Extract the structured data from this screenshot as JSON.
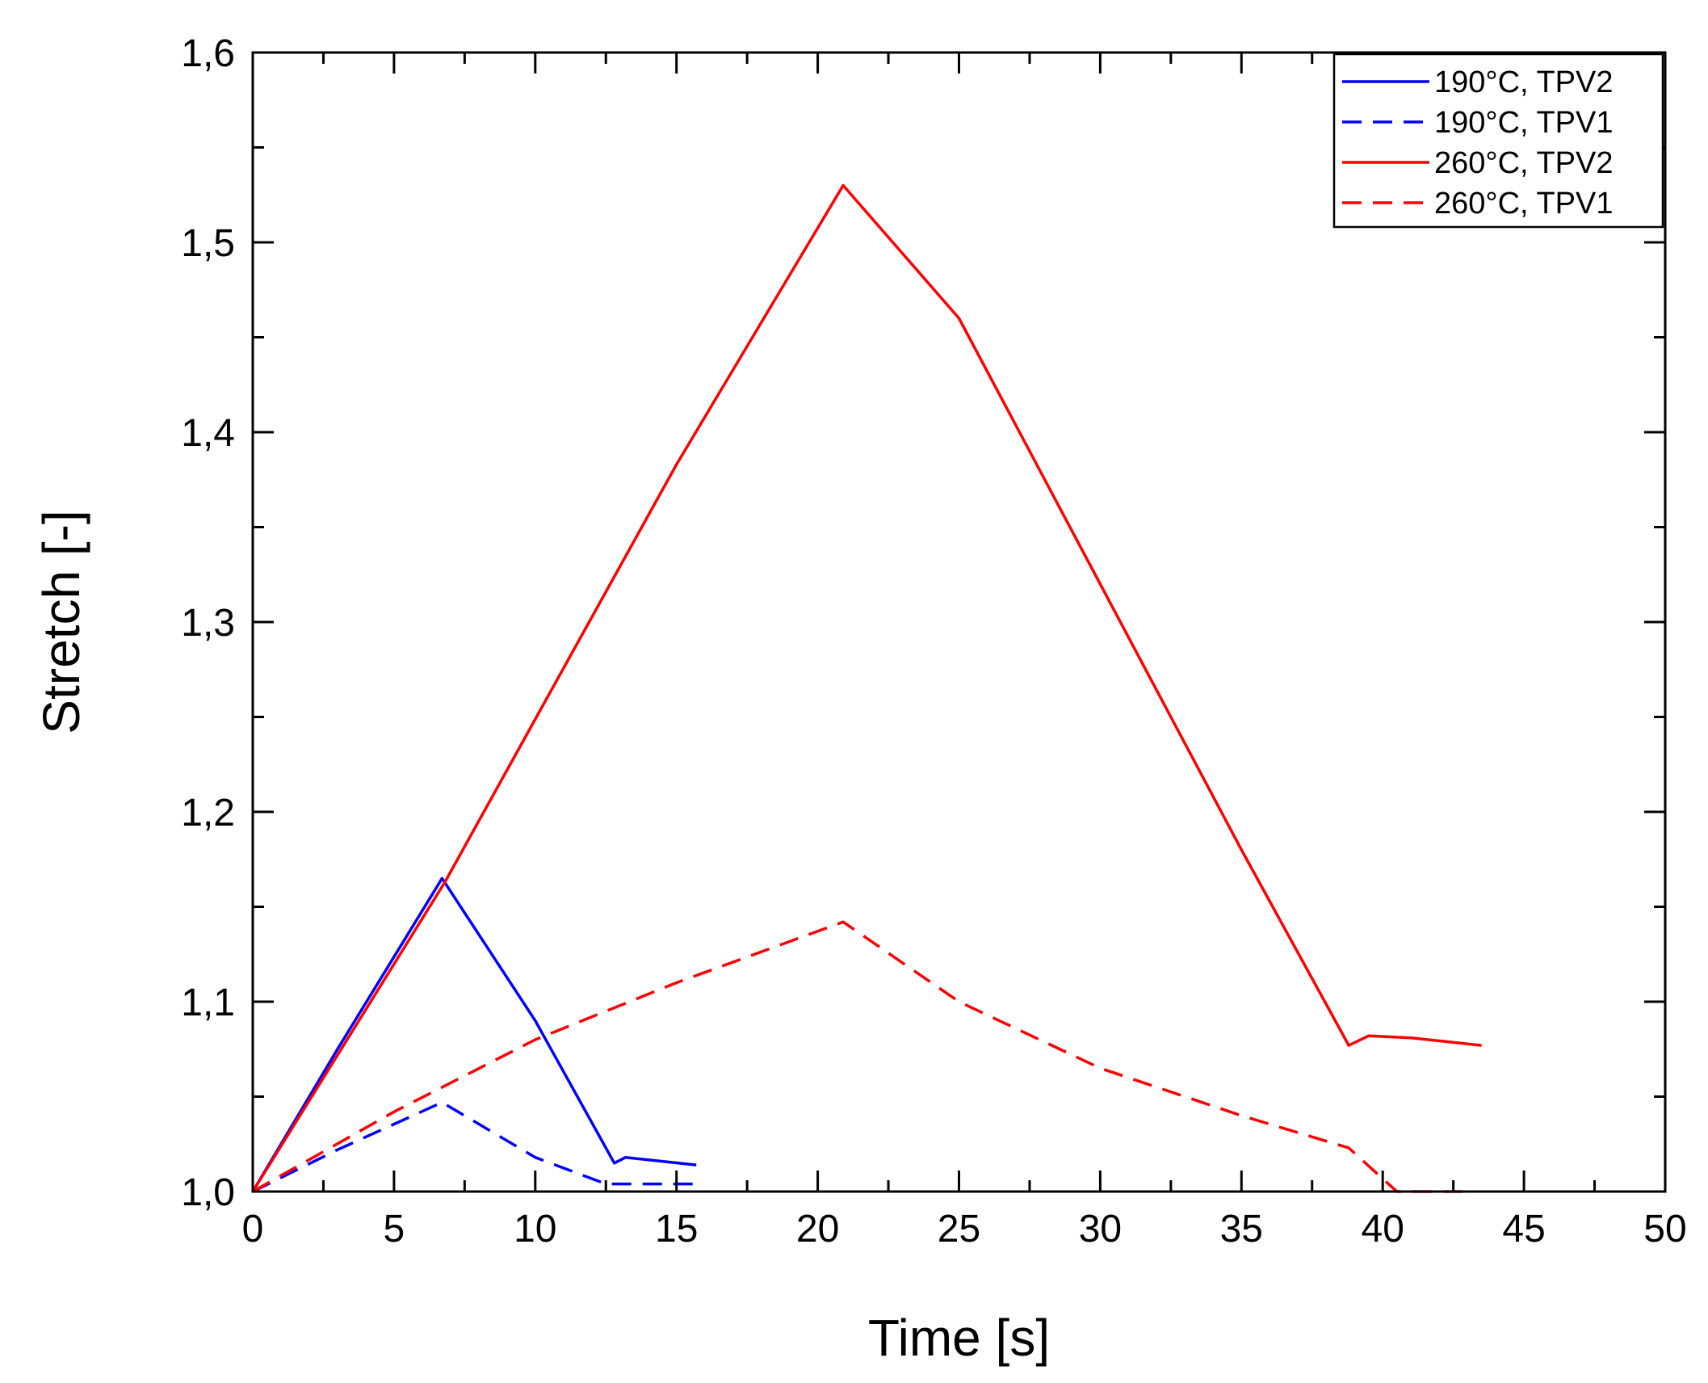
{
  "chart_data": {
    "type": "line",
    "title": "",
    "xlabel": "Time [s]",
    "ylabel": "Stretch [-]",
    "xlim": [
      0,
      50
    ],
    "ylim": [
      1.0,
      1.6
    ],
    "xticks": [
      0,
      5,
      10,
      15,
      20,
      25,
      30,
      35,
      40,
      45,
      50
    ],
    "xtick_labels": [
      "0",
      "5",
      "10",
      "15",
      "20",
      "25",
      "30",
      "35",
      "40",
      "45",
      "50"
    ],
    "yticks": [
      1.0,
      1.1,
      1.2,
      1.3,
      1.4,
      1.5,
      1.6
    ],
    "ytick_labels": [
      "1,0",
      "1,1",
      "1,2",
      "1,3",
      "1,4",
      "1,5",
      "1,6"
    ],
    "grid": false,
    "legend_position": "top-right",
    "series": [
      {
        "name": "190°C, TPV2",
        "color": "#0000ff",
        "style": "solid",
        "points": [
          [
            0,
            1.0
          ],
          [
            3,
            1.075
          ],
          [
            6.7,
            1.165
          ],
          [
            10,
            1.09
          ],
          [
            12.8,
            1.015
          ],
          [
            13.2,
            1.018
          ],
          [
            15.7,
            1.014
          ]
        ]
      },
      {
        "name": "190°C, TPV1",
        "color": "#0000ff",
        "style": "dashed",
        "points": [
          [
            0,
            1.0
          ],
          [
            3,
            1.022
          ],
          [
            6.7,
            1.047
          ],
          [
            10,
            1.018
          ],
          [
            12.5,
            1.004
          ],
          [
            15.7,
            1.004
          ]
        ]
      },
      {
        "name": "260°C, TPV2",
        "color": "#ff0000",
        "style": "solid",
        "points": [
          [
            0,
            1.0
          ],
          [
            6.8,
            1.163
          ],
          [
            15,
            1.383
          ],
          [
            20.9,
            1.53
          ],
          [
            25,
            1.46
          ],
          [
            30,
            1.32
          ],
          [
            35,
            1.18
          ],
          [
            38.8,
            1.077
          ],
          [
            39.5,
            1.082
          ],
          [
            41,
            1.081
          ],
          [
            43.5,
            1.077
          ]
        ]
      },
      {
        "name": "260°C, TPV1",
        "color": "#ff0000",
        "style": "dashed",
        "points": [
          [
            0,
            1.0
          ],
          [
            5,
            1.042
          ],
          [
            10,
            1.08
          ],
          [
            15,
            1.11
          ],
          [
            20.9,
            1.142
          ],
          [
            25,
            1.1
          ],
          [
            30,
            1.065
          ],
          [
            35,
            1.04
          ],
          [
            38.8,
            1.023
          ],
          [
            40.5,
            1.0
          ],
          [
            43.2,
            1.0
          ]
        ]
      }
    ]
  }
}
